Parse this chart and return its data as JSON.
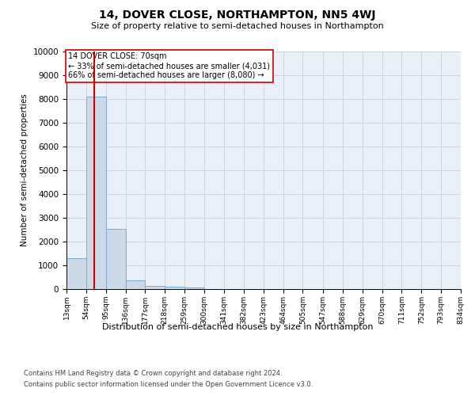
{
  "title": "14, DOVER CLOSE, NORTHAMPTON, NN5 4WJ",
  "subtitle": "Size of property relative to semi-detached houses in Northampton",
  "xlabel": "Distribution of semi-detached houses by size in Northampton",
  "ylabel": "Number of semi-detached properties",
  "footnote1": "Contains HM Land Registry data © Crown copyright and database right 2024.",
  "footnote2": "Contains public sector information licensed under the Open Government Licence v3.0.",
  "annotation_title": "14 DOVER CLOSE: 70sqm",
  "annotation_line1": "← 33% of semi-detached houses are smaller (4,031)",
  "annotation_line2": "66% of semi-detached houses are larger (8,080) →",
  "property_size": 70,
  "bar_color": "#ccd9e8",
  "bar_edge_color": "#7aaace",
  "vline_color": "#cc0000",
  "annotation_box_color": "#cc0000",
  "grid_color": "#c8d4e4",
  "ax_bg_color": "#eaf0f8",
  "background_color": "#ffffff",
  "ylim": [
    0,
    10000
  ],
  "yticks": [
    0,
    1000,
    2000,
    3000,
    4000,
    5000,
    6000,
    7000,
    8000,
    9000,
    10000
  ],
  "bin_edges": [
    13,
    54,
    95,
    136,
    177,
    218,
    259,
    300,
    341,
    382,
    423,
    464,
    505,
    547,
    588,
    629,
    670,
    711,
    752,
    793,
    834
  ],
  "bin_labels": [
    "13sqm",
    "54sqm",
    "95sqm",
    "136sqm",
    "177sqm",
    "218sqm",
    "259sqm",
    "300sqm",
    "341sqm",
    "382sqm",
    "423sqm",
    "464sqm",
    "505sqm",
    "547sqm",
    "588sqm",
    "629sqm",
    "670sqm",
    "711sqm",
    "752sqm",
    "793sqm",
    "834sqm"
  ],
  "bar_heights": [
    1300,
    8100,
    2550,
    380,
    140,
    90,
    60,
    0,
    0,
    0,
    0,
    0,
    0,
    0,
    0,
    0,
    0,
    0,
    0,
    0
  ]
}
